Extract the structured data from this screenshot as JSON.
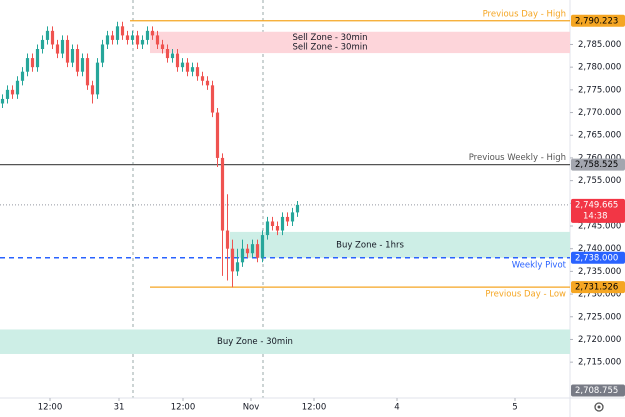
{
  "chart_data": {
    "type": "candlestick",
    "up_color": "#26a69a",
    "down_color": "#ef5350",
    "xlim": [
      -0.5,
      113.5
    ],
    "ylim": [
      2707.1,
      2794.8
    ],
    "xticks": [
      {
        "value": 9.5,
        "label": "12:00"
      },
      {
        "value": 23.3,
        "label": "31"
      },
      {
        "value": 36.1,
        "label": "12:00"
      },
      {
        "value": 49.7,
        "label": "Nov"
      },
      {
        "value": 62.3,
        "label": "12:00"
      },
      {
        "value": 78.9,
        "label": "4"
      },
      {
        "value": 102.5,
        "label": "5"
      }
    ],
    "yticks": [
      {
        "value": 2715,
        "label": "2,715.000"
      },
      {
        "value": 2720,
        "label": "2,720.000"
      },
      {
        "value": 2725,
        "label": "2,725.000"
      },
      {
        "value": 2730,
        "label": "2,730.000"
      },
      {
        "value": 2735,
        "label": "2,735.000"
      },
      {
        "value": 2740,
        "label": "2,740.000"
      },
      {
        "value": 2745,
        "label": "2,745.000"
      },
      {
        "value": 2750,
        "label": "2,750.000"
      },
      {
        "value": 2755,
        "label": "2,755.000"
      },
      {
        "value": 2760,
        "label": "2,760.000"
      },
      {
        "value": 2765,
        "label": "2,765.000"
      },
      {
        "value": 2770,
        "label": "2,770.000"
      },
      {
        "value": 2775,
        "label": "2,775.000"
      },
      {
        "value": 2780,
        "label": "2,780.000"
      },
      {
        "value": 2785,
        "label": "2,785.000"
      }
    ],
    "open": [
      2772,
      2773,
      2775,
      2774,
      2777,
      2779,
      2782,
      2780,
      2784,
      2786,
      2788,
      2785,
      2783,
      2786,
      2781,
      2784,
      2779,
      2782,
      2776,
      2774,
      2781,
      2785,
      2787,
      2786,
      2789,
      2787,
      2786,
      2787,
      2785,
      2786,
      2788,
      2787,
      2785,
      2784,
      2782,
      2783,
      2780,
      2781,
      2779,
      2780,
      2778,
      2777,
      2776,
      2770,
      2760,
      2744,
      2740,
      2735,
      2737,
      2740,
      2739,
      2741,
      2738,
      2743,
      2746,
      2745,
      2744,
      2747,
      2746,
      2748
    ],
    "high": [
      2774,
      2776,
      2776,
      2778,
      2780,
      2783,
      2783,
      2785,
      2787,
      2789,
      2789,
      2786,
      2787,
      2787,
      2785,
      2785,
      2783,
      2783,
      2777,
      2782,
      2786,
      2788,
      2788,
      2790,
      2790,
      2788,
      2788,
      2788,
      2787,
      2789,
      2789,
      2788,
      2786,
      2785,
      2784,
      2784,
      2782,
      2782,
      2781,
      2781,
      2779,
      2778,
      2777,
      2771,
      2761,
      2752,
      2742,
      2740,
      2742,
      2741,
      2742,
      2742,
      2744,
      2747,
      2747,
      2746,
      2748,
      2748,
      2749,
      2750.5
    ],
    "low": [
      2771,
      2772,
      2773,
      2773,
      2776,
      2778,
      2779,
      2779,
      2783,
      2785,
      2784,
      2782,
      2782,
      2780,
      2780,
      2778,
      2778,
      2775,
      2772,
      2773,
      2780,
      2784,
      2785,
      2785,
      2786,
      2785,
      2785,
      2784,
      2784,
      2785,
      2786,
      2784,
      2783,
      2781,
      2781,
      2779,
      2779,
      2778,
      2778,
      2777,
      2776,
      2775,
      2769,
      2758,
      2734,
      2733,
      2731.5,
      2734,
      2736,
      2738,
      2738,
      2737,
      2737,
      2742,
      2744,
      2743,
      2743,
      2745,
      2745,
      2747
    ],
    "close": [
      2773,
      2775,
      2774,
      2777,
      2779,
      2782,
      2780,
      2784,
      2786,
      2788,
      2785,
      2783,
      2786,
      2781,
      2784,
      2779,
      2782,
      2776,
      2774,
      2781,
      2785,
      2787,
      2786,
      2789,
      2787,
      2786,
      2787,
      2785,
      2786,
      2788,
      2787,
      2785,
      2784,
      2782,
      2783,
      2780,
      2781,
      2779,
      2780,
      2778,
      2777,
      2776,
      2770,
      2760,
      2744,
      2740,
      2735,
      2737,
      2740,
      2739,
      2741,
      2738,
      2743,
      2746,
      2745,
      2744,
      2747,
      2746,
      2748,
      2749.665
    ],
    "zones": [
      {
        "label": "Sell Zone - 30min",
        "top": 2787.8,
        "bottom": 2785.3,
        "start": 29.5,
        "color": "#fdd5da"
      },
      {
        "label": "Sell Zone - 30min",
        "top": 2785.8,
        "bottom": 2783.1,
        "start": 29.5,
        "color": "#fdd5da"
      },
      {
        "label": "Buy Zone - 1hrs",
        "top": 2743.7,
        "bottom": 2738,
        "start": 45.5,
        "color": "#cdeee6"
      },
      {
        "label": "Buy Zone - 30min",
        "top": 2722.2,
        "bottom": 2716.8,
        "start": -0.5,
        "color": "#cdeee6"
      }
    ],
    "levels": [
      {
        "label": "Previous Day - High",
        "value": 2790.223,
        "start": 25.5,
        "color": "#f5a623",
        "style": "solid",
        "label_side": "above"
      },
      {
        "label": "Previous Weekly - High",
        "value": 2758.525,
        "start": -0.5,
        "color": "#555555",
        "style": "solid",
        "label_side": "above"
      },
      {
        "label": "Weekly Pivot",
        "value": 2738,
        "start": -0.5,
        "color": "#2962ff",
        "style": "dashed",
        "label_side": "below"
      },
      {
        "label": "Previous Day - Low",
        "value": 2731.526,
        "start": 29.5,
        "color": "#f5a623",
        "style": "solid",
        "label_side": "below"
      }
    ],
    "price_tags": [
      {
        "value": 2790.223,
        "label": "2,790.223",
        "color": "#f5a623",
        "text_color": "#000000"
      },
      {
        "value": 2758.525,
        "label": "2,758.525",
        "color": "#a3a6af",
        "text_color": "#000000"
      },
      {
        "value": 2749.665,
        "label": "2,749.665",
        "sub": "14:38",
        "color": "#f23645",
        "text_color": "#ffffff"
      },
      {
        "value": 2738,
        "label": "2,738.000",
        "color": "#2962ff",
        "text_color": "#ffffff"
      },
      {
        "value": 2731.526,
        "label": "2,731.526",
        "color": "#f5a623",
        "text_color": "#000000"
      },
      {
        "value": 2708.755,
        "label": "2,708.755",
        "color": "#787b86",
        "text_color": "#ffffff"
      }
    ]
  }
}
